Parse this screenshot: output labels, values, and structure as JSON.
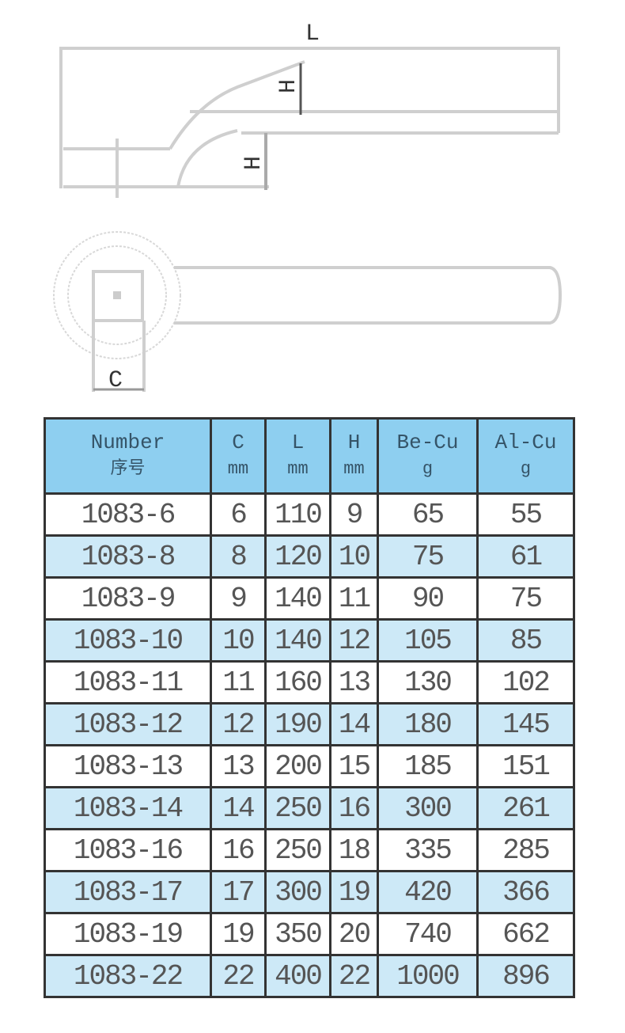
{
  "drawing": {
    "labels": {
      "length": "L",
      "angle_height": "H",
      "head_height": "H",
      "square_size": "C"
    },
    "line_color": "#cfcfcf"
  },
  "table": {
    "header_color": "#8ecff0",
    "alt_row_color": "#cde9f7",
    "headers": [
      {
        "top": "Number",
        "bottom": "序号"
      },
      {
        "top": "C",
        "bottom": "mm"
      },
      {
        "top": "L",
        "bottom": "mm"
      },
      {
        "top": "H",
        "bottom": "mm"
      },
      {
        "top": "Be-Cu",
        "bottom": "g"
      },
      {
        "top": "Al-Cu",
        "bottom": "g"
      }
    ],
    "rows": [
      [
        "1083-6",
        "6",
        "110",
        "9",
        "65",
        "55"
      ],
      [
        "1083-8",
        "8",
        "120",
        "10",
        "75",
        "61"
      ],
      [
        "1083-9",
        "9",
        "140",
        "11",
        "90",
        "75"
      ],
      [
        "1083-10",
        "10",
        "140",
        "12",
        "105",
        "85"
      ],
      [
        "1083-11",
        "11",
        "160",
        "13",
        "130",
        "102"
      ],
      [
        "1083-12",
        "12",
        "190",
        "14",
        "180",
        "145"
      ],
      [
        "1083-13",
        "13",
        "200",
        "15",
        "185",
        "151"
      ],
      [
        "1083-14",
        "14",
        "250",
        "16",
        "300",
        "261"
      ],
      [
        "1083-16",
        "16",
        "250",
        "18",
        "335",
        "285"
      ],
      [
        "1083-17",
        "17",
        "300",
        "19",
        "420",
        "366"
      ],
      [
        "1083-19",
        "19",
        "350",
        "20",
        "740",
        "662"
      ],
      [
        "1083-22",
        "22",
        "400",
        "22",
        "1000",
        "896"
      ]
    ]
  }
}
